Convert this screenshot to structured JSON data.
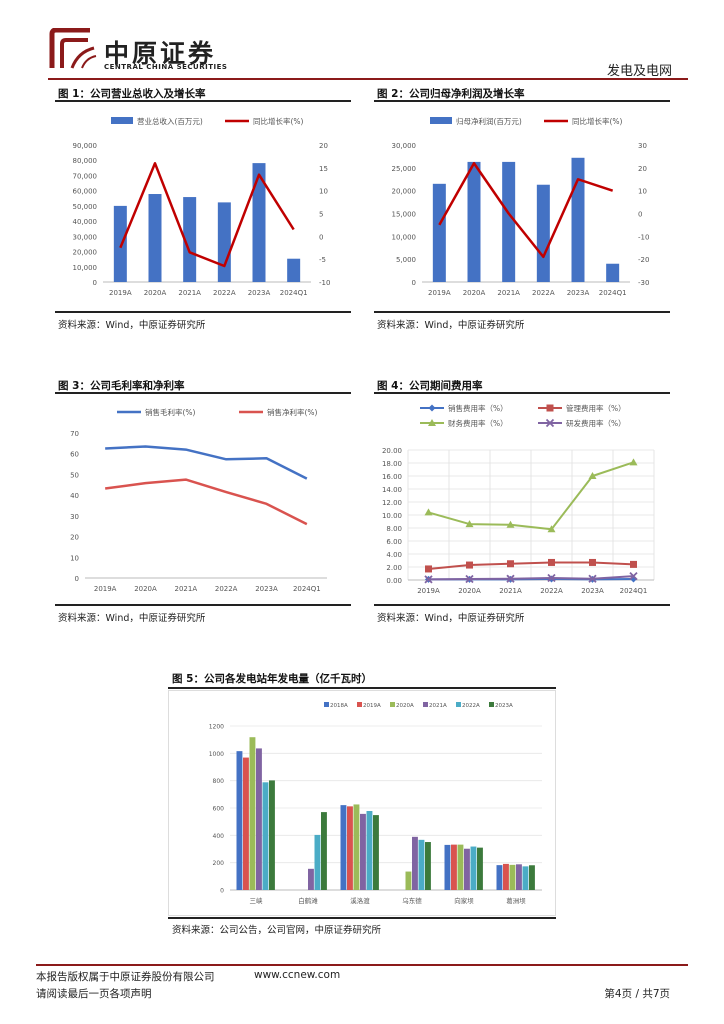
{
  "header": {
    "brand_cn": "中原证券",
    "brand_en": "CENTRAL CHINA SECURITIES",
    "section": "发电及电网"
  },
  "colors": {
    "blue": "#4472C4",
    "red": "#C00000",
    "accent": "#8b1a1a"
  },
  "figures": [
    {
      "title": "图 1：公司营业总收入及增长率",
      "source": "资料来源：Wind，中原证券研究所",
      "chart_data": {
        "type": "bar",
        "categories": [
          "2019A",
          "2020A",
          "2021A",
          "2022A",
          "2023A",
          "2024Q1"
        ],
        "series": [
          {
            "name": "营业总收入(百万元)",
            "kind": "bar",
            "axis": "left",
            "values": [
              50000,
              57800,
              55800,
              52300,
              78100,
              15300
            ]
          },
          {
            "name": "同比增长率(%)",
            "kind": "line",
            "axis": "right",
            "values": [
              -2.5,
              16,
              -3.5,
              -6.5,
              13.5,
              1.5
            ]
          }
        ],
        "y_left": {
          "min": 0,
          "max": 90000,
          "step": 10000,
          "labels": [
            "0",
            "10,000",
            "20,000",
            "30,000",
            "40,000",
            "50,000",
            "60,000",
            "70,000",
            "80,000",
            "90,000"
          ]
        },
        "y_right": {
          "min": -10,
          "max": 20,
          "step": 5,
          "labels": [
            "-10",
            "-5",
            "0",
            "5",
            "10",
            "15",
            "20"
          ]
        }
      }
    },
    {
      "title": "图 2：公司归母净利润及增长率",
      "source": "资料来源：Wind，中原证券研究所",
      "chart_data": {
        "type": "bar",
        "categories": [
          "2019A",
          "2020A",
          "2021A",
          "2022A",
          "2023A",
          "2024Q1"
        ],
        "series": [
          {
            "name": "归母净利润(百万元)",
            "kind": "bar",
            "axis": "left",
            "values": [
              21500,
              26300,
              26300,
              21300,
              27200,
              4000
            ]
          },
          {
            "name": "同比增长率(%)",
            "kind": "line",
            "axis": "right",
            "values": [
              -5,
              22,
              0,
              -19,
              15,
              10
            ]
          }
        ],
        "y_left": {
          "min": 0,
          "max": 30000,
          "step": 5000,
          "labels": [
            "0",
            "5,000",
            "10,000",
            "15,000",
            "20,000",
            "25,000",
            "30,000"
          ]
        },
        "y_right": {
          "min": -30,
          "max": 30,
          "step": 10,
          "labels": [
            "-30",
            "-20",
            "-10",
            "0",
            "10",
            "20",
            "30"
          ]
        }
      }
    },
    {
      "title": "图 3：公司毛利率和净利率",
      "source": "资料来源：Wind，中原证券研究所",
      "chart_data": {
        "type": "line",
        "categories": [
          "2019A",
          "2020A",
          "2021A",
          "2022A",
          "2023A",
          "2024Q1"
        ],
        "series": [
          {
            "name": "销售毛利率(%)",
            "values": [
              62.5,
              63.5,
              62,
              57.3,
              57.8,
              48
            ],
            "color": "#4472C4"
          },
          {
            "name": "销售净利率(%)",
            "values": [
              43.2,
              45.8,
              47.5,
              41.5,
              35.8,
              26
            ],
            "color": "#D9534F"
          }
        ],
        "y": {
          "min": 0,
          "max": 70,
          "step": 10,
          "labels": [
            "0",
            "10",
            "20",
            "30",
            "40",
            "50",
            "60",
            "70"
          ]
        }
      }
    },
    {
      "title": "图 4：公司期间费用率",
      "source": "资料来源：Wind，中原证券研究所",
      "chart_data": {
        "type": "line",
        "categories": [
          "2019A",
          "2020A",
          "2021A",
          "2022A",
          "2023A",
          "2024Q1"
        ],
        "series": [
          {
            "name": "销售费用率（%）",
            "values": [
              0.1,
              0.1,
              0.1,
              0.15,
              0.1,
              0.15
            ],
            "color": "#4472C4",
            "marker": "diamond"
          },
          {
            "name": "管理费用率（%）",
            "values": [
              1.7,
              2.3,
              2.5,
              2.7,
              2.7,
              2.4
            ],
            "color": "#C0504D",
            "marker": "square"
          },
          {
            "name": "财务费用率（%）",
            "values": [
              10.4,
              8.6,
              8.5,
              7.8,
              16,
              18.1
            ],
            "color": "#9BBB59",
            "marker": "triangle"
          },
          {
            "name": "研发费用率（%）",
            "values": [
              0.1,
              0.15,
              0.2,
              0.3,
              0.2,
              0.6
            ],
            "color": "#8064A2",
            "marker": "x"
          }
        ],
        "y": {
          "min": 0,
          "max": 20,
          "step": 2,
          "labels": [
            "0.00",
            "2.00",
            "4.00",
            "6.00",
            "8.00",
            "10.00",
            "12.00",
            "14.00",
            "16.00",
            "18.00",
            "20.00"
          ]
        }
      }
    },
    {
      "title": "图 5：公司各发电站年发电量（亿千瓦时）",
      "source": "资料来源：公司公告，公司官网，中原证券研究所",
      "chart_data": {
        "type": "bar",
        "categories": [
          "三峡",
          "白鹤滩",
          "溪洛渡",
          "乌东德",
          "向家坝",
          "葛洲坝"
        ],
        "series": [
          {
            "name": "2018A",
            "color": "#4472C4",
            "values": [
              1016,
              null,
              621,
              null,
              330,
              182
            ]
          },
          {
            "name": "2019A",
            "color": "#D9534F",
            "values": [
              969,
              null,
              612,
              null,
              332,
              191
            ]
          },
          {
            "name": "2020A",
            "color": "#9BBB59",
            "values": [
              1118,
              null,
              626,
              135,
              332,
              184
            ]
          },
          {
            "name": "2021A",
            "color": "#8064A2",
            "values": [
              1036,
              155,
              557,
              389,
              302,
              188
            ]
          },
          {
            "name": "2022A",
            "color": "#4BACC6",
            "values": [
              788,
              403,
              578,
              367,
              318,
              173
            ]
          },
          {
            "name": "2023A",
            "color": "#3C7A3C",
            "values": [
              802,
              570,
              548,
              351,
              310,
              181
            ]
          }
        ],
        "y": {
          "min": 0,
          "max": 1200,
          "step": 200,
          "labels": [
            "0",
            "200",
            "400",
            "600",
            "800",
            "1000",
            "1200"
          ]
        }
      }
    }
  ],
  "footer": {
    "copyright": "本报告版权属于中原证券股份有限公司",
    "website": "www.ccnew.com",
    "notice": "请阅读最后一页各项声明",
    "page": "第4页 / 共7页"
  }
}
